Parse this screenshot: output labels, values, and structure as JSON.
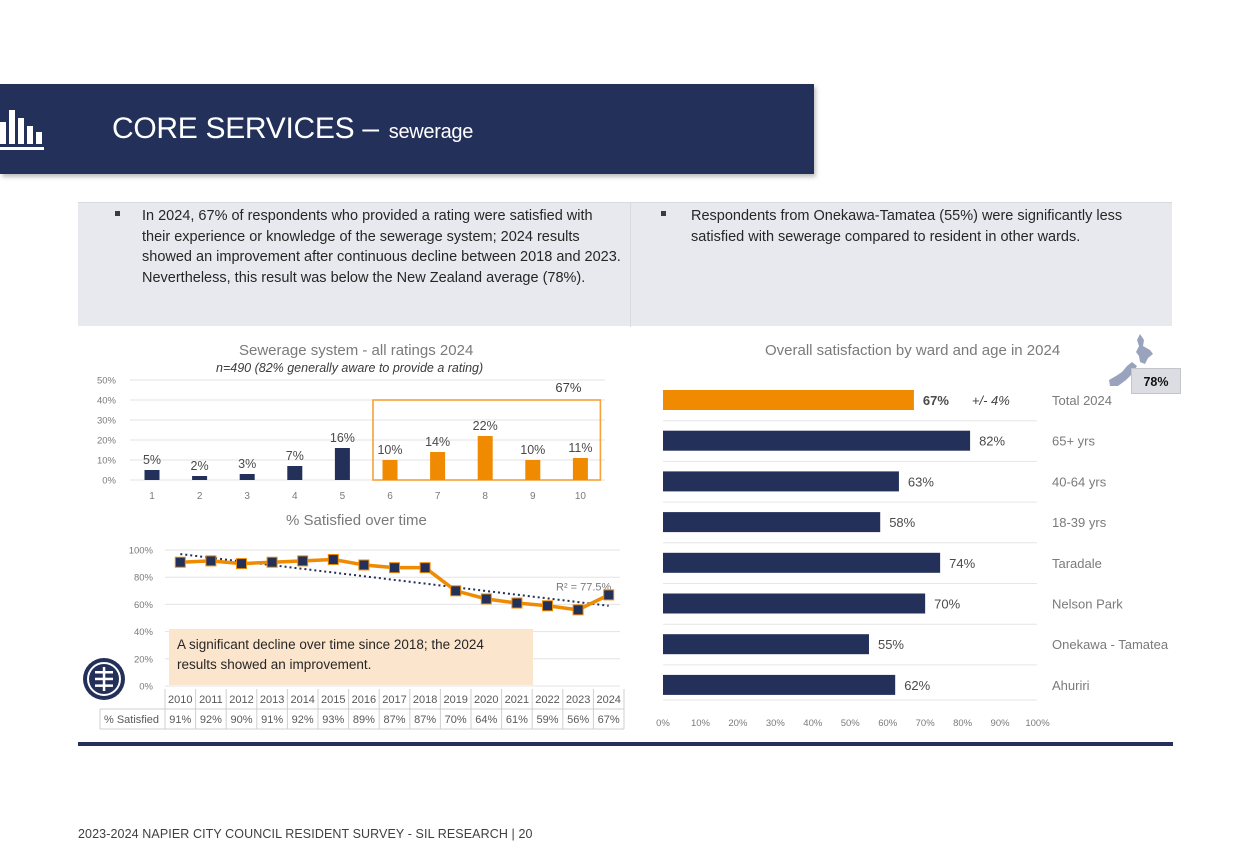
{
  "header": {
    "title": "CORE SERVICES –",
    "subtitle": "sewerage",
    "icon": "bar-chart-icon"
  },
  "summary": {
    "left": "In 2024, 67% of respondents who provided a rating were satisfied with their experience or knowledge of the sewerage system; 2024 results showed an improvement after continuous decline between 2018 and 2023. Nevertheless, this result was below the New Zealand average (78%).",
    "right": "Respondents from Onekawa-Tamatea (55%) were significantly less satisfied with sewerage compared to resident in other wards."
  },
  "callout": "A significant decline over time since 2018; the 2024 results showed an improvement.",
  "nz_average": {
    "value": "78%",
    "icon": "new-zealand-map-icon"
  },
  "footer": "2023-2024 NAPIER CITY COUNCIL RESIDENT SURVEY - SIL RESEARCH | 20",
  "colors": {
    "navy": "#22305a",
    "orange": "#f08a00",
    "band": "#e8e9ee",
    "callout": "#fbe5cc"
  },
  "chart_data": [
    {
      "type": "bar",
      "title": "Sewerage system - all ratings 2024",
      "subtitle": "n=490 (82% generally aware to provide a rating)",
      "categories": [
        "1",
        "2",
        "3",
        "4",
        "5",
        "6",
        "7",
        "8",
        "9",
        "10"
      ],
      "values": [
        5,
        2,
        3,
        7,
        16,
        10,
        14,
        22,
        10,
        11
      ],
      "value_labels": [
        "5%",
        "2%",
        "3%",
        "7%",
        "16%",
        "10%",
        "14%",
        "22%",
        "10%",
        "11%"
      ],
      "colors": [
        "#22305a",
        "#22305a",
        "#22305a",
        "#22305a",
        "#22305a",
        "#f08a00",
        "#f08a00",
        "#f08a00",
        "#f08a00",
        "#f08a00"
      ],
      "ylim": [
        0,
        50
      ],
      "yticks": [
        "0%",
        "10%",
        "20%",
        "30%",
        "40%",
        "50%"
      ],
      "grid": true,
      "highlight": {
        "from": "6",
        "to": "10",
        "label": "67%"
      }
    },
    {
      "type": "line",
      "title": "% Satisfied over time",
      "x": [
        "2010",
        "2011",
        "2012",
        "2013",
        "2014",
        "2015",
        "2016",
        "2017",
        "2018",
        "2019",
        "2020",
        "2021",
        "2022",
        "2023",
        "2024"
      ],
      "y": [
        91,
        92,
        90,
        91,
        92,
        93,
        89,
        87,
        87,
        70,
        64,
        61,
        59,
        56,
        67
      ],
      "row_label": "% Satisfied",
      "value_labels": [
        "91%",
        "92%",
        "90%",
        "91%",
        "92%",
        "93%",
        "89%",
        "87%",
        "87%",
        "70%",
        "64%",
        "61%",
        "59%",
        "56%",
        "67%"
      ],
      "ylim": [
        0,
        100
      ],
      "yticks": [
        "0%",
        "20%",
        "40%",
        "60%",
        "80%",
        "100%"
      ],
      "trendline": {
        "label": "R² = 77.5%",
        "start": 97,
        "end": 59
      },
      "grid": true
    },
    {
      "type": "bar",
      "orientation": "horizontal",
      "title": "Overall satisfaction by ward and age in 2024",
      "categories": [
        "Total 2024",
        "65+ yrs",
        "40-64 yrs",
        "18-39 yrs",
        "Taradale",
        "Nelson Park",
        "Onekawa - Tamatea",
        "Ahuriri"
      ],
      "values": [
        67,
        82,
        63,
        58,
        74,
        70,
        55,
        62
      ],
      "value_labels": [
        "67%",
        "82%",
        "63%",
        "58%",
        "74%",
        "70%",
        "55%",
        "62%"
      ],
      "colors": [
        "#f08a00",
        "#22305a",
        "#22305a",
        "#22305a",
        "#22305a",
        "#22305a",
        "#22305a",
        "#22305a"
      ],
      "margin_of_error": "+/- 4%",
      "xlim": [
        0,
        100
      ],
      "xticks": [
        "0%",
        "10%",
        "20%",
        "30%",
        "40%",
        "50%",
        "60%",
        "70%",
        "80%",
        "90%",
        "100%"
      ]
    }
  ]
}
